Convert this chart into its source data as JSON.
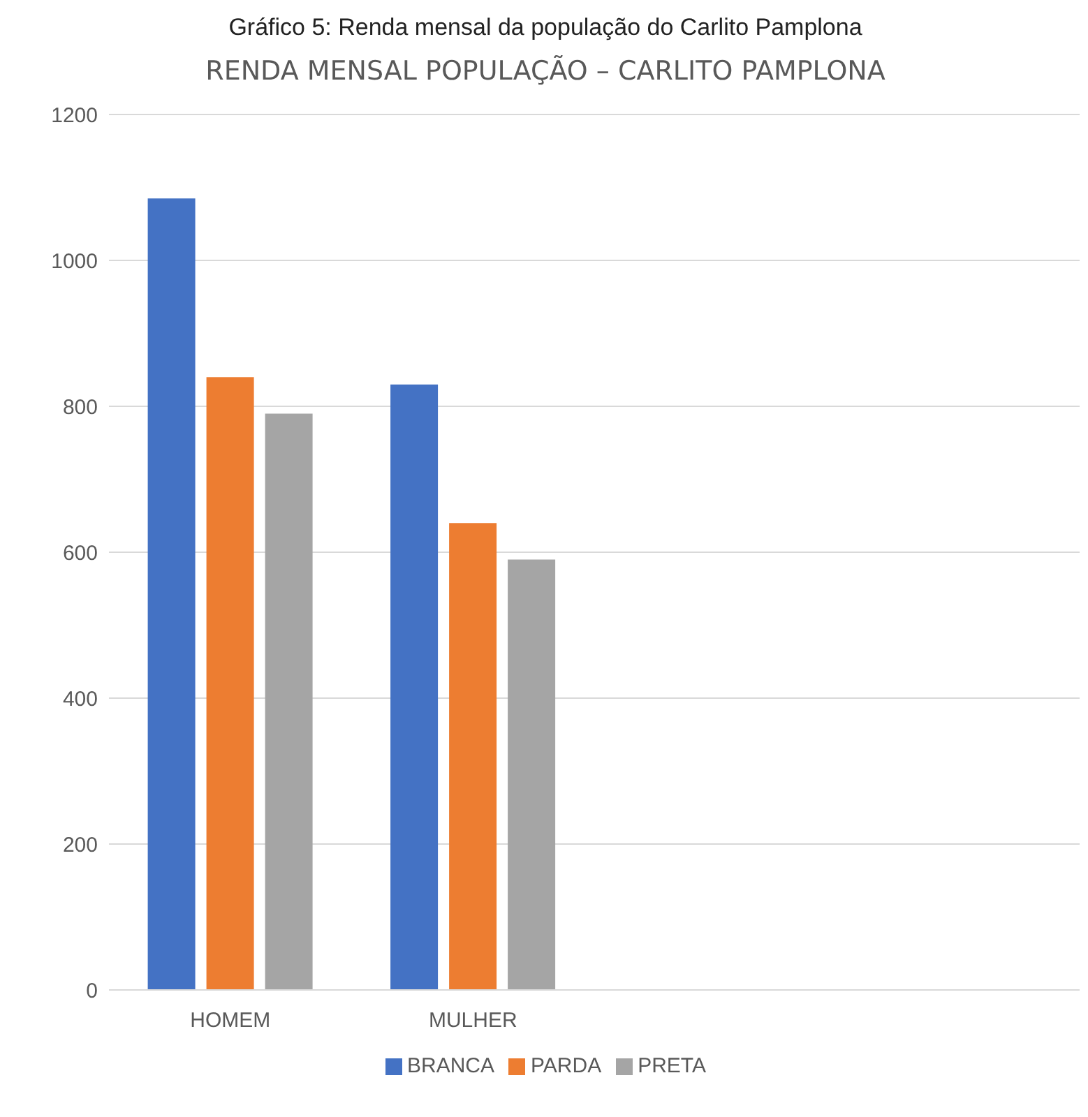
{
  "chart_data": {
    "type": "bar",
    "title": "Gráfico 5: Renda mensal da população do Carlito Pamplona",
    "subtitle": "RENDA MENSAL POPULAÇÃO – CARLITO PAMPLONA",
    "categories": [
      "HOMEM",
      "MULHER",
      null,
      null
    ],
    "series": [
      {
        "name": "BRANCA",
        "color": "#4472c4",
        "values": [
          1085,
          830,
          null,
          null
        ]
      },
      {
        "name": "PARDA",
        "color": "#ed7d31",
        "values": [
          840,
          640,
          null,
          null
        ]
      },
      {
        "name": "PRETA",
        "color": "#a5a5a5",
        "values": [
          790,
          590,
          null,
          null
        ]
      }
    ],
    "ylim": [
      0,
      1200
    ],
    "yticks": [
      0,
      200,
      400,
      600,
      800,
      1000,
      1200
    ],
    "grid": "y",
    "legend": "bottom"
  }
}
